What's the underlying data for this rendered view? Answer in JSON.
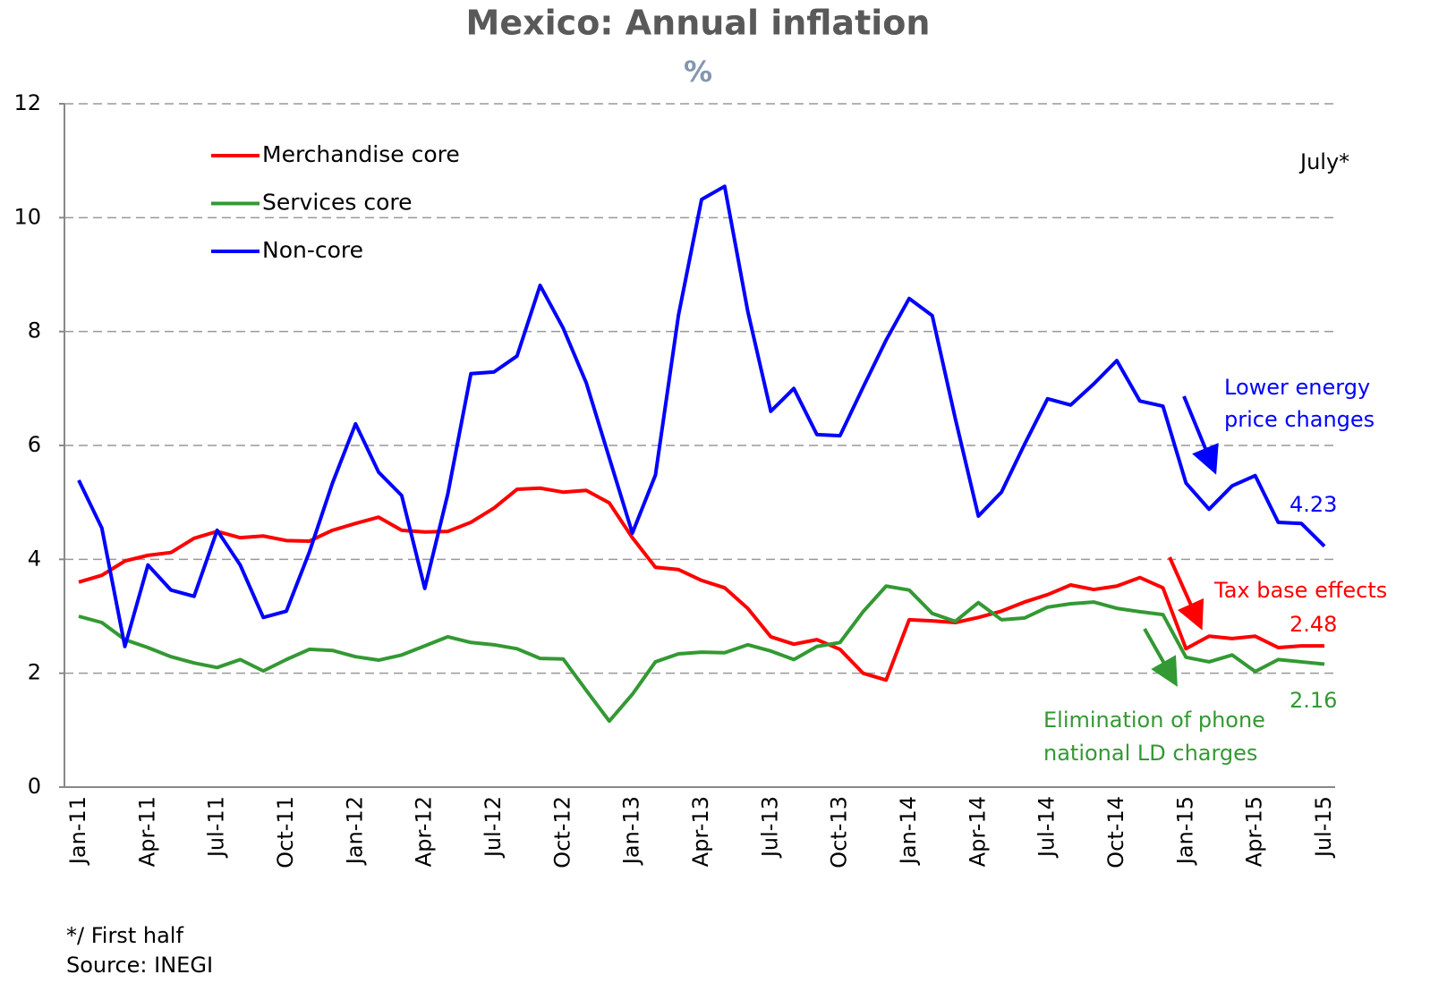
{
  "chart_data": {
    "type": "line",
    "title": "Mexico: Annual inflation",
    "subtitle": "%",
    "categories": [
      "Jan-11",
      null,
      null,
      "Apr-11",
      null,
      null,
      "Jul-11",
      null,
      null,
      "Oct-11",
      null,
      null,
      "Jan-12",
      null,
      null,
      "Apr-12",
      null,
      null,
      "Jul-12",
      null,
      null,
      "Oct-12",
      null,
      null,
      "Jan-13",
      null,
      null,
      "Apr-13",
      null,
      null,
      "Jul-13",
      null,
      null,
      "Oct-13",
      null,
      null,
      "Jan-14",
      null,
      null,
      "Apr-14",
      null,
      null,
      "Jul-14",
      null,
      null,
      "Oct-14",
      null,
      null,
      "Jan-15",
      null,
      null,
      "Apr-15",
      null,
      null,
      "Jul-15"
    ],
    "series": [
      {
        "name": "Merchandise core",
        "color": "#ff0000",
        "values": [
          3.6,
          3.72,
          3.97,
          4.07,
          4.12,
          4.37,
          4.49,
          4.38,
          4.41,
          4.33,
          4.32,
          4.51,
          4.63,
          4.74,
          4.51,
          4.48,
          4.49,
          4.65,
          4.9,
          5.23,
          5.25,
          5.18,
          5.21,
          4.99,
          4.38,
          3.86,
          3.82,
          3.63,
          3.5,
          3.14,
          2.64,
          2.51,
          2.59,
          2.42,
          2.0,
          1.88,
          2.94,
          2.92,
          2.89,
          2.98,
          3.09,
          3.25,
          3.38,
          3.55,
          3.47,
          3.53,
          3.68,
          3.5,
          2.43,
          2.65,
          2.61,
          2.65,
          2.45,
          2.48,
          2.48
        ]
      },
      {
        "name": "Services core",
        "color": "#339933",
        "values": [
          3.0,
          2.89,
          2.59,
          2.45,
          2.29,
          2.18,
          2.1,
          2.24,
          2.04,
          2.24,
          2.42,
          2.4,
          2.29,
          2.23,
          2.32,
          2.48,
          2.64,
          2.54,
          2.5,
          2.43,
          2.26,
          2.25,
          1.7,
          1.16,
          1.63,
          2.2,
          2.34,
          2.37,
          2.36,
          2.5,
          2.39,
          2.24,
          2.47,
          2.54,
          3.08,
          3.53,
          3.46,
          3.05,
          2.91,
          3.24,
          2.94,
          2.97,
          3.16,
          3.22,
          3.25,
          3.14,
          3.08,
          3.03,
          2.28,
          2.2,
          2.32,
          2.03,
          2.24,
          2.2,
          2.16
        ]
      },
      {
        "name": "Non-core",
        "color": "#0000ff",
        "values": [
          5.39,
          4.55,
          2.47,
          3.9,
          3.46,
          3.35,
          4.51,
          3.9,
          2.98,
          3.09,
          4.13,
          5.34,
          6.38,
          5.53,
          5.12,
          3.49,
          5.15,
          7.26,
          7.29,
          7.57,
          8.81,
          8.06,
          7.1,
          5.78,
          4.46,
          5.48,
          8.29,
          10.32,
          10.55,
          8.36,
          6.6,
          7.0,
          6.19,
          6.17,
          7.02,
          7.85,
          8.58,
          8.28,
          6.47,
          4.76,
          5.18,
          6.02,
          6.82,
          6.71,
          7.08,
          7.49,
          6.78,
          6.69,
          5.34,
          4.88,
          5.29,
          5.47,
          4.65,
          4.63,
          4.23
        ]
      }
    ],
    "ylim": [
      0,
      12
    ],
    "yticks": [
      0,
      2,
      4,
      6,
      8,
      10,
      12
    ],
    "grid": true,
    "legend": "upper left",
    "annotations": {
      "july": "July*",
      "energy": [
        "Lower energy",
        "price changes"
      ],
      "tax": "Tax base effects",
      "phone": [
        "Elimination of phone",
        "national LD charges"
      ]
    },
    "notes": [
      "*/ First half",
      "Source: INEGI"
    ]
  }
}
